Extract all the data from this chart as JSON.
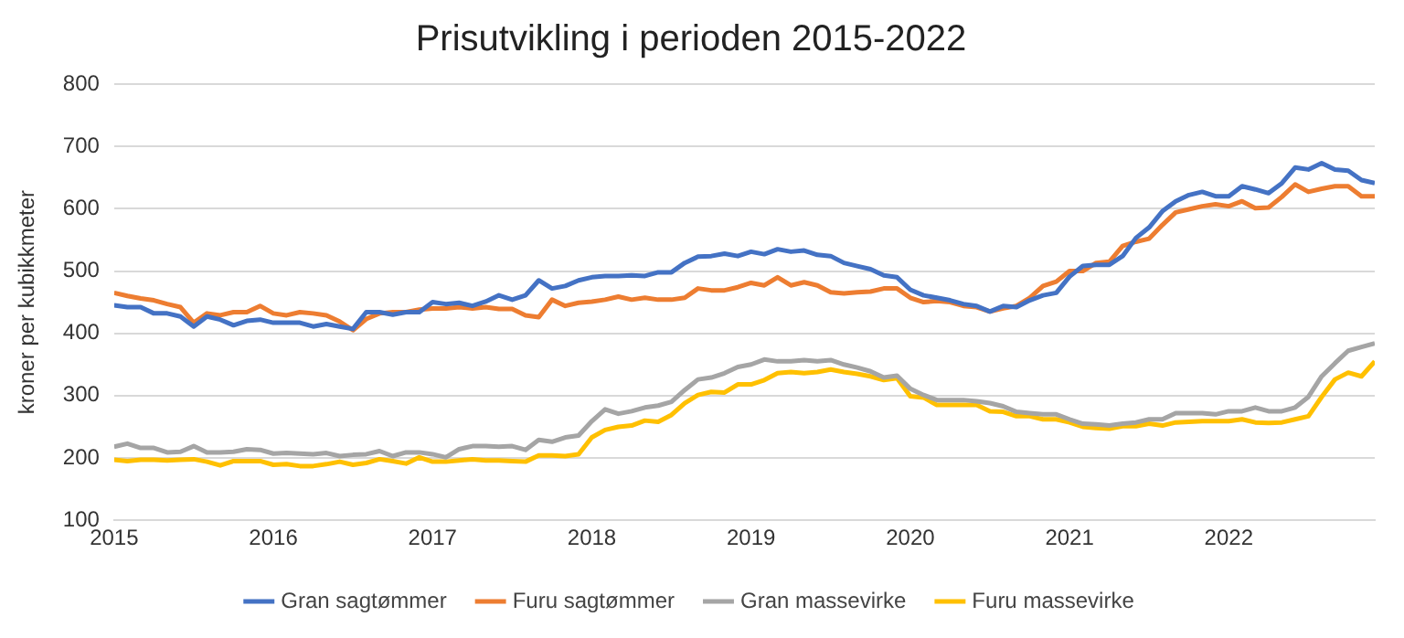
{
  "chart_data": {
    "type": "line",
    "title": "Prisutvikling i perioden 2015-2022",
    "ylabel": "kroner per kubikkmeter",
    "x": [
      "2015-01",
      "2015-02",
      "2015-03",
      "2015-04",
      "2015-05",
      "2015-06",
      "2015-07",
      "2015-08",
      "2015-09",
      "2015-10",
      "2015-11",
      "2015-12",
      "2016-01",
      "2016-02",
      "2016-03",
      "2016-04",
      "2016-05",
      "2016-06",
      "2016-07",
      "2016-08",
      "2016-09",
      "2016-10",
      "2016-11",
      "2016-12",
      "2017-01",
      "2017-02",
      "2017-03",
      "2017-04",
      "2017-05",
      "2017-06",
      "2017-07",
      "2017-08",
      "2017-09",
      "2017-10",
      "2017-11",
      "2017-12",
      "2018-01",
      "2018-02",
      "2018-03",
      "2018-04",
      "2018-05",
      "2018-06",
      "2018-07",
      "2018-08",
      "2018-09",
      "2018-10",
      "2018-11",
      "2018-12",
      "2019-01",
      "2019-02",
      "2019-03",
      "2019-04",
      "2019-05",
      "2019-06",
      "2019-07",
      "2019-08",
      "2019-09",
      "2019-10",
      "2019-11",
      "2019-12",
      "2020-01",
      "2020-02",
      "2020-03",
      "2020-04",
      "2020-05",
      "2020-06",
      "2020-07",
      "2020-08",
      "2020-09",
      "2020-10",
      "2020-11",
      "2020-12",
      "2021-01",
      "2021-02",
      "2021-03",
      "2021-04",
      "2021-05",
      "2021-06",
      "2021-07",
      "2021-08",
      "2021-09",
      "2021-10",
      "2021-11",
      "2021-12",
      "2022-01",
      "2022-02",
      "2022-03",
      "2022-04",
      "2022-05",
      "2022-06",
      "2022-07",
      "2022-08",
      "2022-09",
      "2022-10",
      "2022-11",
      "2022-12"
    ],
    "series": [
      {
        "name": "Gran sagtømmer",
        "color": "#4472c4",
        "values": [
          445,
          442,
          442,
          432,
          432,
          427,
          411,
          427,
          422,
          413,
          420,
          422,
          417,
          417,
          417,
          411,
          415,
          411,
          407,
          434,
          434,
          430,
          434,
          434,
          450,
          447,
          449,
          444,
          451,
          461,
          454,
          461,
          485,
          472,
          476,
          485,
          490,
          492,
          492,
          493,
          492,
          498,
          498,
          513,
          523,
          524,
          528,
          524,
          531,
          527,
          535,
          531,
          533,
          526,
          524,
          513,
          508,
          503,
          493,
          490,
          470,
          461,
          457,
          453,
          447,
          444,
          435,
          444,
          442,
          453,
          461,
          465,
          491,
          508,
          510,
          510,
          524,
          553,
          570,
          596,
          612,
          622,
          627,
          620,
          620,
          636,
          631,
          625,
          641,
          666,
          663,
          673,
          663,
          661,
          646,
          641
        ]
      },
      {
        "name": "Furu sagtømmer",
        "color": "#ed7d31",
        "values": [
          465,
          460,
          456,
          453,
          447,
          442,
          417,
          432,
          429,
          434,
          434,
          444,
          432,
          429,
          434,
          432,
          429,
          419,
          405,
          423,
          432,
          434,
          434,
          438,
          440,
          440,
          442,
          440,
          442,
          439,
          439,
          429,
          426,
          454,
          444,
          449,
          451,
          454,
          459,
          454,
          457,
          454,
          454,
          457,
          472,
          469,
          469,
          474,
          481,
          477,
          490,
          477,
          482,
          477,
          466,
          464,
          466,
          467,
          472,
          472,
          457,
          450,
          452,
          450,
          444,
          442,
          435,
          440,
          444,
          457,
          476,
          483,
          500,
          500,
          513,
          515,
          540,
          547,
          552,
          574,
          594,
          599,
          604,
          607,
          604,
          612,
          601,
          602,
          619,
          639,
          627,
          632,
          636,
          636,
          620,
          620
        ]
      },
      {
        "name": "Gran massevirke",
        "color": "#a5a5a5",
        "values": [
          218,
          223,
          216,
          216,
          209,
          210,
          219,
          209,
          209,
          210,
          214,
          213,
          207,
          208,
          207,
          206,
          208,
          203,
          205,
          206,
          211,
          203,
          209,
          209,
          206,
          201,
          214,
          219,
          219,
          218,
          219,
          213,
          229,
          226,
          233,
          236,
          259,
          278,
          271,
          275,
          281,
          284,
          290,
          309,
          326,
          329,
          336,
          346,
          350,
          358,
          355,
          355,
          357,
          355,
          357,
          350,
          345,
          339,
          329,
          332,
          311,
          301,
          293,
          293,
          293,
          291,
          288,
          283,
          274,
          272,
          270,
          270,
          262,
          255,
          254,
          252,
          255,
          257,
          262,
          262,
          272,
          272,
          272,
          270,
          275,
          275,
          281,
          275,
          275,
          281,
          298,
          331,
          352,
          372,
          378,
          384
        ]
      },
      {
        "name": "Furu massevirke",
        "color": "#ffc000",
        "values": [
          197,
          195,
          197,
          197,
          196,
          197,
          198,
          194,
          188,
          195,
          195,
          195,
          189,
          190,
          187,
          187,
          190,
          194,
          189,
          192,
          198,
          195,
          191,
          201,
          194,
          194,
          196,
          198,
          196,
          196,
          195,
          194,
          204,
          204,
          203,
          206,
          233,
          245,
          250,
          252,
          260,
          258,
          269,
          288,
          301,
          306,
          305,
          318,
          318,
          325,
          336,
          338,
          336,
          338,
          342,
          338,
          335,
          331,
          325,
          328,
          299,
          297,
          285,
          285,
          285,
          285,
          275,
          274,
          267,
          267,
          262,
          262,
          257,
          250,
          248,
          247,
          251,
          251,
          255,
          252,
          257,
          258,
          259,
          259,
          259,
          262,
          257,
          256,
          257,
          262,
          267,
          298,
          326,
          337,
          331,
          355
        ]
      }
    ],
    "xlim": [
      "2015-01",
      "2022-12"
    ],
    "xticks": [
      "2015",
      "2016",
      "2017",
      "2018",
      "2019",
      "2020",
      "2021",
      "2022"
    ],
    "ylim": [
      100,
      800
    ],
    "yticks": [
      100,
      200,
      300,
      400,
      500,
      600,
      700,
      800
    ],
    "grid": "y",
    "legend": "bottom",
    "marker": "none",
    "line_style": "solid"
  }
}
